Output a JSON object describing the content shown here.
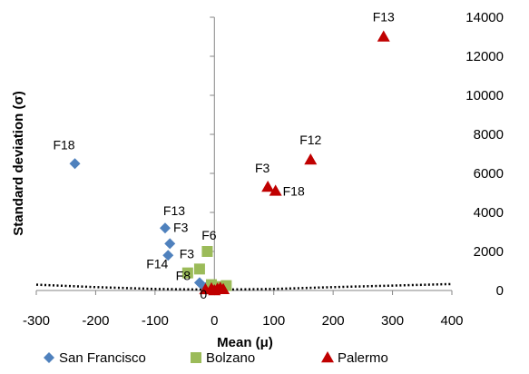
{
  "chart_data": {
    "type": "scatter",
    "xlabel": "Mean (μ)",
    "ylabel": "Standard deviation (σ)",
    "xlim": [
      -300,
      400
    ],
    "ylim": [
      0,
      14000
    ],
    "x_ticks": [
      "-300",
      "-200",
      "-100",
      "0",
      "100",
      "200",
      "300",
      "400"
    ],
    "y_ticks": [
      "0",
      "2000",
      "4000",
      "6000",
      "8000",
      "10000",
      "12000",
      "14000"
    ],
    "grid": false,
    "legend_position": "bottom",
    "series": [
      {
        "name": "San Francisco",
        "marker": "diamond",
        "color": "#4F81BD",
        "points": [
          {
            "x": -235,
            "y": 6500,
            "label": "F18"
          },
          {
            "x": -83,
            "y": 3200,
            "label": "F13"
          },
          {
            "x": -75,
            "y": 2400,
            "label": "F3"
          },
          {
            "x": -78,
            "y": 1800,
            "label": "F14"
          },
          {
            "x": -25,
            "y": 400,
            "label": ""
          },
          {
            "x": -15,
            "y": 150,
            "label": ""
          },
          {
            "x": -5,
            "y": 80,
            "label": ""
          },
          {
            "x": 0,
            "y": 30,
            "label": ""
          }
        ]
      },
      {
        "name": "Bolzano",
        "marker": "square",
        "color": "#9BBB59",
        "points": [
          {
            "x": -12,
            "y": 2000,
            "label": "F6"
          },
          {
            "x": -25,
            "y": 1100,
            "label": "F3"
          },
          {
            "x": -45,
            "y": 900,
            "label": "F8"
          },
          {
            "x": -5,
            "y": 300,
            "label": ""
          },
          {
            "x": 5,
            "y": 200,
            "label": ""
          },
          {
            "x": 20,
            "y": 250,
            "label": ""
          },
          {
            "x": 0,
            "y": 100,
            "label": ""
          }
        ]
      },
      {
        "name": "Palermo",
        "marker": "triangle",
        "color": "#C00000",
        "points": [
          {
            "x": 285,
            "y": 13000,
            "label": "F13"
          },
          {
            "x": 162,
            "y": 6700,
            "label": "F12"
          },
          {
            "x": 90,
            "y": 5300,
            "label": "F3"
          },
          {
            "x": 103,
            "y": 5100,
            "label": "F18"
          },
          {
            "x": -15,
            "y": 50,
            "label": ""
          },
          {
            "x": -5,
            "y": 100,
            "label": ""
          },
          {
            "x": 0,
            "y": 0,
            "label": "0"
          },
          {
            "x": 5,
            "y": 80,
            "label": ""
          },
          {
            "x": 10,
            "y": 120,
            "label": ""
          },
          {
            "x": 15,
            "y": 60,
            "label": ""
          }
        ]
      }
    ],
    "threshold_curve": {
      "style": "dotted",
      "color": "#000000",
      "points": [
        [
          -300,
          300
        ],
        [
          -200,
          170
        ],
        [
          -100,
          80
        ],
        [
          0,
          40
        ],
        [
          100,
          80
        ],
        [
          200,
          170
        ],
        [
          300,
          250
        ],
        [
          400,
          330
        ]
      ]
    }
  }
}
